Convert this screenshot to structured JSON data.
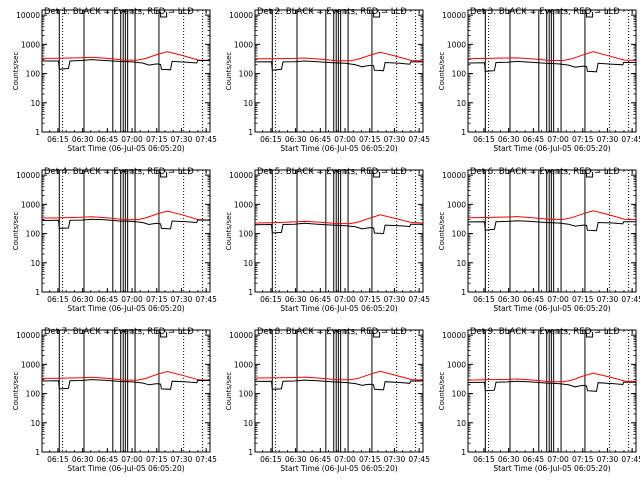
{
  "chart_data": {
    "type": "line",
    "ylabel": "Counts/sec",
    "xlabel": "Start Time (06-Jul-05 06:05:20)",
    "x_units": "minutes after 06:05:20",
    "xlim": [
      0,
      102
    ],
    "ylim": [
      1,
      15000
    ],
    "yscale": "log",
    "ytick_labels": [
      "1",
      "10",
      "100",
      "1000",
      "10000"
    ],
    "xtick_labels": [
      "06:15",
      "06:30",
      "06:45",
      "07:00",
      "07:15",
      "07:30",
      "07:45"
    ],
    "xtick_minutes": [
      9.67,
      24.67,
      39.67,
      54.67,
      69.67,
      84.67,
      99.67
    ],
    "series_colors": {
      "events": "#000000",
      "lld": "#ff0000"
    },
    "panels": [
      {
        "title": "Det 1:  BLACK = Events, RED = LLD",
        "solid_vlines": [
          10.5,
          25.5,
          43,
          47.8,
          49.3,
          50.6,
          52,
          56.5,
          71
        ],
        "dotted_vlines": [
          12.5,
          86,
          97.5
        ],
        "events": {
          "x": [
            0,
            10,
            10.5,
            16,
            17,
            24,
            30,
            38,
            47,
            55,
            61,
            65,
            67,
            70,
            72,
            72.5,
            78,
            79,
            88,
            94,
            94.5,
            102
          ],
          "y": [
            270,
            270,
            140,
            150,
            270,
            280,
            300,
            280,
            260,
            250,
            230,
            195,
            205,
            215,
            205,
            140,
            135,
            260,
            245,
            230,
            280,
            280
          ]
        },
        "lld": {
          "x": [
            0,
            10,
            24,
            30,
            40,
            50,
            58,
            63,
            70,
            76,
            85,
            95,
            102
          ],
          "y": [
            330,
            335,
            350,
            360,
            330,
            290,
            290,
            330,
            450,
            560,
            420,
            290,
            280
          ]
        }
      },
      {
        "title": "Det 2:  BLACK = Events, RED = LLD",
        "solid_vlines": [
          10.5,
          25.5,
          43,
          47.8,
          49.3,
          50.6,
          52,
          56.5,
          71
        ],
        "dotted_vlines": [
          12.5,
          86,
          97.5
        ],
        "events": {
          "x": [
            0,
            10,
            10.5,
            16,
            17,
            24,
            30,
            38,
            47,
            55,
            61,
            65,
            67,
            70,
            72,
            72.5,
            78,
            79,
            88,
            94,
            94.5,
            102
          ],
          "y": [
            250,
            255,
            130,
            140,
            250,
            255,
            270,
            255,
            235,
            225,
            200,
            170,
            180,
            190,
            185,
            130,
            125,
            240,
            225,
            210,
            250,
            250
          ]
        },
        "lld": {
          "x": [
            0,
            10,
            24,
            30,
            40,
            50,
            58,
            63,
            70,
            76,
            85,
            95,
            102
          ],
          "y": [
            320,
            320,
            330,
            340,
            310,
            275,
            275,
            315,
            430,
            540,
            400,
            280,
            270
          ]
        }
      },
      {
        "title": "Det 3:  BLACK = Events, RED = LLD",
        "solid_vlines": [
          10.5,
          25.5,
          43,
          47.8,
          49.3,
          50.6,
          52,
          56.5,
          71
        ],
        "dotted_vlines": [
          12.5,
          86,
          97.5
        ],
        "events": {
          "x": [
            0,
            10,
            10.5,
            16,
            17,
            24,
            30,
            38,
            47,
            55,
            61,
            65,
            67,
            70,
            72,
            72.5,
            78,
            79,
            88,
            94,
            94.5,
            102
          ],
          "y": [
            230,
            235,
            120,
            125,
            240,
            245,
            260,
            245,
            225,
            215,
            195,
            165,
            170,
            180,
            175,
            120,
            115,
            225,
            210,
            200,
            240,
            240
          ]
        },
        "lld": {
          "x": [
            0,
            10,
            24,
            30,
            40,
            50,
            58,
            63,
            70,
            76,
            85,
            95,
            102
          ],
          "y": [
            320,
            330,
            340,
            345,
            315,
            280,
            280,
            320,
            440,
            560,
            410,
            290,
            280
          ]
        }
      },
      {
        "title": "Det 4:  BLACK = Events, RED = LLD",
        "solid_vlines": [
          10.5,
          25.5,
          43,
          47.8,
          49.3,
          50.6,
          52,
          56.5,
          71
        ],
        "dotted_vlines": [
          12.5,
          86,
          97.5
        ],
        "events": {
          "x": [
            0,
            10,
            10.5,
            16,
            17,
            24,
            30,
            38,
            47,
            55,
            61,
            65,
            67,
            70,
            72,
            72.5,
            78,
            79,
            88,
            94,
            94.5,
            102
          ],
          "y": [
            280,
            285,
            150,
            155,
            285,
            290,
            310,
            295,
            270,
            260,
            240,
            205,
            215,
            225,
            215,
            150,
            145,
            270,
            255,
            240,
            290,
            290
          ]
        },
        "lld": {
          "x": [
            0,
            10,
            24,
            30,
            40,
            50,
            58,
            63,
            70,
            76,
            85,
            95,
            102
          ],
          "y": [
            340,
            345,
            360,
            375,
            345,
            300,
            300,
            345,
            470,
            590,
            440,
            300,
            290
          ]
        }
      },
      {
        "title": "Det 5:  BLACK = Events, RED = LLD",
        "solid_vlines": [
          10.5,
          25.5,
          43,
          47.8,
          49.3,
          50.6,
          52,
          56.5,
          71
        ],
        "dotted_vlines": [
          12.5,
          86,
          97.5
        ],
        "events": {
          "x": [
            0,
            10,
            10.5,
            16,
            17,
            24,
            30,
            38,
            47,
            55,
            61,
            65,
            67,
            70,
            72,
            72.5,
            78,
            79,
            88,
            94,
            94.5,
            102
          ],
          "y": [
            200,
            205,
            105,
            110,
            205,
            210,
            225,
            210,
            195,
            185,
            170,
            145,
            150,
            160,
            155,
            105,
            100,
            195,
            185,
            175,
            210,
            210
          ]
        },
        "lld": {
          "x": [
            0,
            10,
            24,
            30,
            40,
            50,
            58,
            63,
            70,
            76,
            85,
            95,
            102
          ],
          "y": [
            230,
            235,
            250,
            260,
            245,
            220,
            220,
            250,
            340,
            440,
            330,
            240,
            230
          ]
        }
      },
      {
        "title": "Det 6:  BLACK = Events, RED = LLD",
        "solid_vlines": [
          10.5,
          25.5,
          43,
          47.8,
          49.3,
          50.6,
          52,
          56.5,
          71
        ],
        "dotted_vlines": [
          12.5,
          86,
          97.5
        ],
        "events": {
          "x": [
            0,
            10,
            10.5,
            16,
            17,
            24,
            30,
            38,
            47,
            55,
            61,
            65,
            67,
            70,
            72,
            72.5,
            78,
            79,
            88,
            94,
            94.5,
            102
          ],
          "y": [
            250,
            255,
            130,
            140,
            255,
            260,
            275,
            260,
            240,
            230,
            210,
            180,
            185,
            195,
            190,
            130,
            125,
            240,
            230,
            215,
            255,
            255
          ]
        },
        "lld": {
          "x": [
            0,
            10,
            24,
            30,
            40,
            50,
            58,
            63,
            70,
            76,
            85,
            95,
            102
          ],
          "y": [
            350,
            355,
            370,
            380,
            345,
            305,
            305,
            350,
            480,
            600,
            450,
            310,
            300
          ]
        }
      },
      {
        "title": "Det 7:  BLACK = Events, RED = LLD",
        "solid_vlines": [
          10.5,
          25.5,
          43,
          47.8,
          49.3,
          50.6,
          52,
          56.5,
          71
        ],
        "dotted_vlines": [
          12.5,
          86,
          97.5
        ],
        "events": {
          "x": [
            0,
            10,
            10.5,
            16,
            17,
            24,
            30,
            38,
            47,
            55,
            61,
            65,
            67,
            70,
            72,
            72.5,
            78,
            79,
            88,
            94,
            94.5,
            102
          ],
          "y": [
            270,
            275,
            145,
            150,
            275,
            280,
            300,
            285,
            260,
            250,
            230,
            200,
            210,
            220,
            210,
            145,
            140,
            265,
            250,
            235,
            280,
            280
          ]
        },
        "lld": {
          "x": [
            0,
            10,
            24,
            30,
            40,
            50,
            58,
            63,
            70,
            76,
            85,
            95,
            102
          ],
          "y": [
            330,
            335,
            350,
            360,
            330,
            290,
            290,
            330,
            455,
            570,
            425,
            295,
            285
          ]
        }
      },
      {
        "title": "Det 8:  BLACK = Events, RED = LLD",
        "solid_vlines": [
          10.5,
          25.5,
          43,
          47.8,
          49.3,
          50.6,
          52,
          56.5,
          71
        ],
        "dotted_vlines": [
          12.5,
          86,
          97.5
        ],
        "events": {
          "x": [
            0,
            10,
            10.5,
            16,
            17,
            24,
            30,
            38,
            47,
            55,
            61,
            65,
            67,
            70,
            72,
            72.5,
            78,
            79,
            88,
            94,
            94.5,
            102
          ],
          "y": [
            260,
            265,
            140,
            145,
            265,
            270,
            290,
            275,
            250,
            240,
            220,
            190,
            200,
            210,
            200,
            140,
            135,
            255,
            240,
            225,
            270,
            270
          ]
        },
        "lld": {
          "x": [
            0,
            10,
            24,
            30,
            40,
            50,
            58,
            63,
            70,
            76,
            85,
            95,
            102
          ],
          "y": [
            340,
            345,
            355,
            365,
            335,
            295,
            295,
            335,
            460,
            580,
            430,
            300,
            290
          ]
        }
      },
      {
        "title": "Det 9:  BLACK = Events, RED = LLD",
        "solid_vlines": [
          10.5,
          25.5,
          43,
          47.8,
          49.3,
          50.6,
          52,
          56.5,
          71
        ],
        "dotted_vlines": [
          12.5,
          86,
          97.5
        ],
        "events": {
          "x": [
            0,
            10,
            10.5,
            16,
            17,
            24,
            30,
            38,
            47,
            55,
            61,
            65,
            67,
            70,
            72,
            72.5,
            78,
            79,
            88,
            94,
            94.5,
            102
          ],
          "y": [
            240,
            245,
            125,
            130,
            245,
            250,
            265,
            250,
            230,
            220,
            200,
            170,
            180,
            190,
            180,
            125,
            120,
            235,
            220,
            205,
            245,
            245
          ]
        },
        "lld": {
          "x": [
            0,
            10,
            24,
            30,
            40,
            50,
            58,
            63,
            70,
            76,
            85,
            95,
            102
          ],
          "y": [
            290,
            295,
            305,
            315,
            290,
            255,
            255,
            290,
            400,
            500,
            380,
            270,
            260
          ]
        }
      }
    ]
  }
}
